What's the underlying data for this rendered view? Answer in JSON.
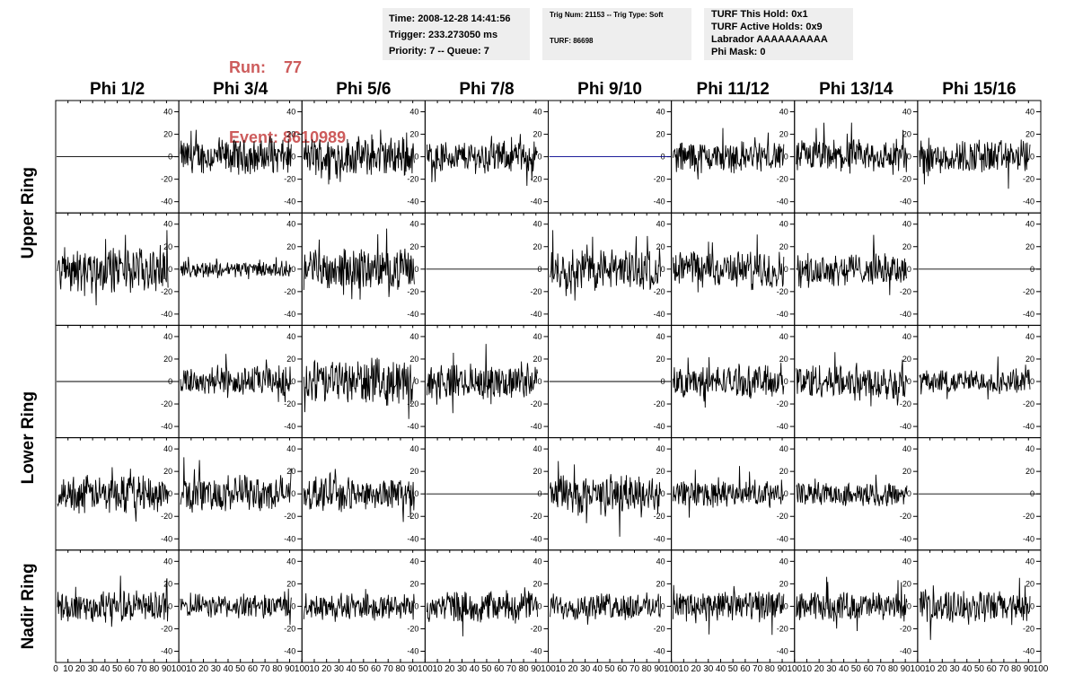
{
  "header": {
    "run_label": "Run:",
    "run_value": "77",
    "event_label": "Event:",
    "event_value": "8610989"
  },
  "info_time": {
    "time": "Time: 2008-12-28 14:41:56",
    "trigger": "Trigger: 233.273050 ms",
    "priority": "Priority: 7 -- Queue: 7"
  },
  "info_trig": {
    "trig": "Trig Num: 21153 -- Trig Type: Soft",
    "turf": "TURF: 86698"
  },
  "info_turf": {
    "hold": "TURF This Hold: 0x1",
    "active": "TURF Active Holds: 0x9",
    "labrador": "Labrador AAAAAAAAAA",
    "phimask": "Phi Mask: 0"
  },
  "chart_data": {
    "type": "line",
    "columns": [
      "Phi 1/2",
      "Phi 3/4",
      "Phi 5/6",
      "Phi 7/8",
      "Phi 9/10",
      "Phi 11/12",
      "Phi 13/14",
      "Phi 15/16"
    ],
    "ring_labels": [
      {
        "text": "Upper Ring",
        "rows": [
          0,
          1
        ]
      },
      {
        "text": "Lower Ring",
        "rows": [
          2,
          3
        ]
      },
      {
        "text": "Nadir Ring",
        "rows": [
          4,
          4
        ]
      }
    ],
    "rows": 5,
    "xlim": [
      0,
      100
    ],
    "ylim": [
      -50,
      50
    ],
    "y_ticks": [
      -40,
      -20,
      0,
      20,
      40
    ],
    "x_ticks_first": [
      "0",
      "10",
      "20",
      "30",
      "40",
      "50",
      "60",
      "70",
      "80",
      "90",
      "100"
    ],
    "x_ticks_other": [
      "10",
      "20",
      "30",
      "40",
      "50",
      "60",
      "70",
      "80",
      "90",
      "100"
    ],
    "line_color": "#000000",
    "flat_line_color": "#00008b",
    "panels": [
      [
        {
          "amp": 0,
          "blue": false
        },
        {
          "amp": 13
        },
        {
          "amp": 15
        },
        {
          "amp": 12
        },
        {
          "amp": 0,
          "blue": true
        },
        {
          "amp": 12
        },
        {
          "amp": 13
        },
        {
          "amp": 13
        }
      ],
      [
        {
          "amp": 17
        },
        {
          "amp": 6
        },
        {
          "amp": 15
        },
        {
          "amp": 0
        },
        {
          "amp": 16
        },
        {
          "amp": 14
        },
        {
          "amp": 12
        },
        {
          "amp": 0
        }
      ],
      [
        {
          "amp": 0
        },
        {
          "amp": 12
        },
        {
          "amp": 17
        },
        {
          "amp": 13
        },
        {
          "amp": 0
        },
        {
          "amp": 12
        },
        {
          "amp": 14
        },
        {
          "amp": 9
        }
      ],
      [
        {
          "amp": 14
        },
        {
          "amp": 14
        },
        {
          "amp": 12
        },
        {
          "amp": 0
        },
        {
          "amp": 15
        },
        {
          "amp": 10
        },
        {
          "amp": 9
        },
        {
          "amp": 0
        }
      ],
      [
        {
          "amp": 12
        },
        {
          "amp": 9
        },
        {
          "amp": 10
        },
        {
          "amp": 12
        },
        {
          "amp": 10
        },
        {
          "amp": 12
        },
        {
          "amp": 11
        },
        {
          "amp": 12
        }
      ]
    ]
  }
}
